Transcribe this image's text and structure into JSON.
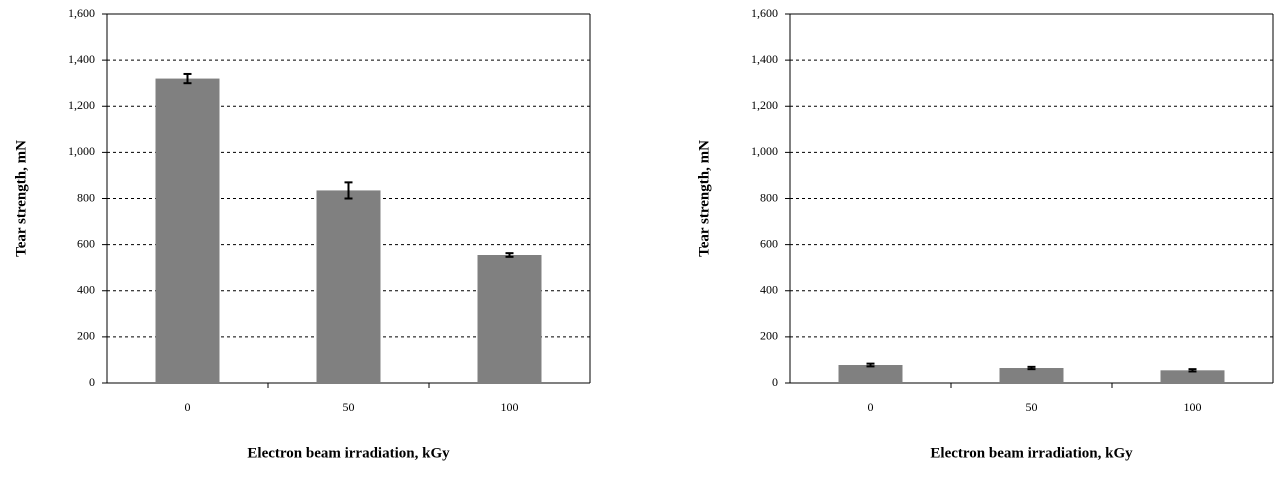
{
  "chart_data": [
    {
      "type": "bar",
      "ylabel": "Tear strength, mN",
      "xlabel": "Electron beam irradiation, kGy",
      "categories": [
        "0",
        "50",
        "100"
      ],
      "values": [
        1320,
        835,
        555
      ],
      "errors": [
        20,
        35,
        8
      ],
      "color": "#808080",
      "ylim": [
        0,
        1600
      ],
      "yticks": [
        0,
        200,
        400,
        600,
        800,
        {
          "value": 1000,
          "label": "1,000"
        },
        {
          "value": 1200,
          "label": "1,200"
        },
        {
          "value": 1400,
          "label": "1,400"
        },
        {
          "value": 1600,
          "label": "1,600"
        }
      ],
      "grid": true
    },
    {
      "type": "bar",
      "ylabel": "Tear strength, mN",
      "xlabel": "Electron beam irradiation, kGy",
      "categories": [
        "0",
        "50",
        "100"
      ],
      "values": [
        78,
        65,
        55
      ],
      "errors": [
        6,
        5,
        5
      ],
      "color": "#808080",
      "ylim": [
        0,
        1600
      ],
      "yticks": [
        0,
        200,
        400,
        600,
        800,
        {
          "value": 1000,
          "label": "1,000"
        },
        {
          "value": 1200,
          "label": "1,200"
        },
        {
          "value": 1400,
          "label": "1,400"
        },
        {
          "value": 1600,
          "label": "1,600"
        }
      ],
      "grid": true
    }
  ]
}
